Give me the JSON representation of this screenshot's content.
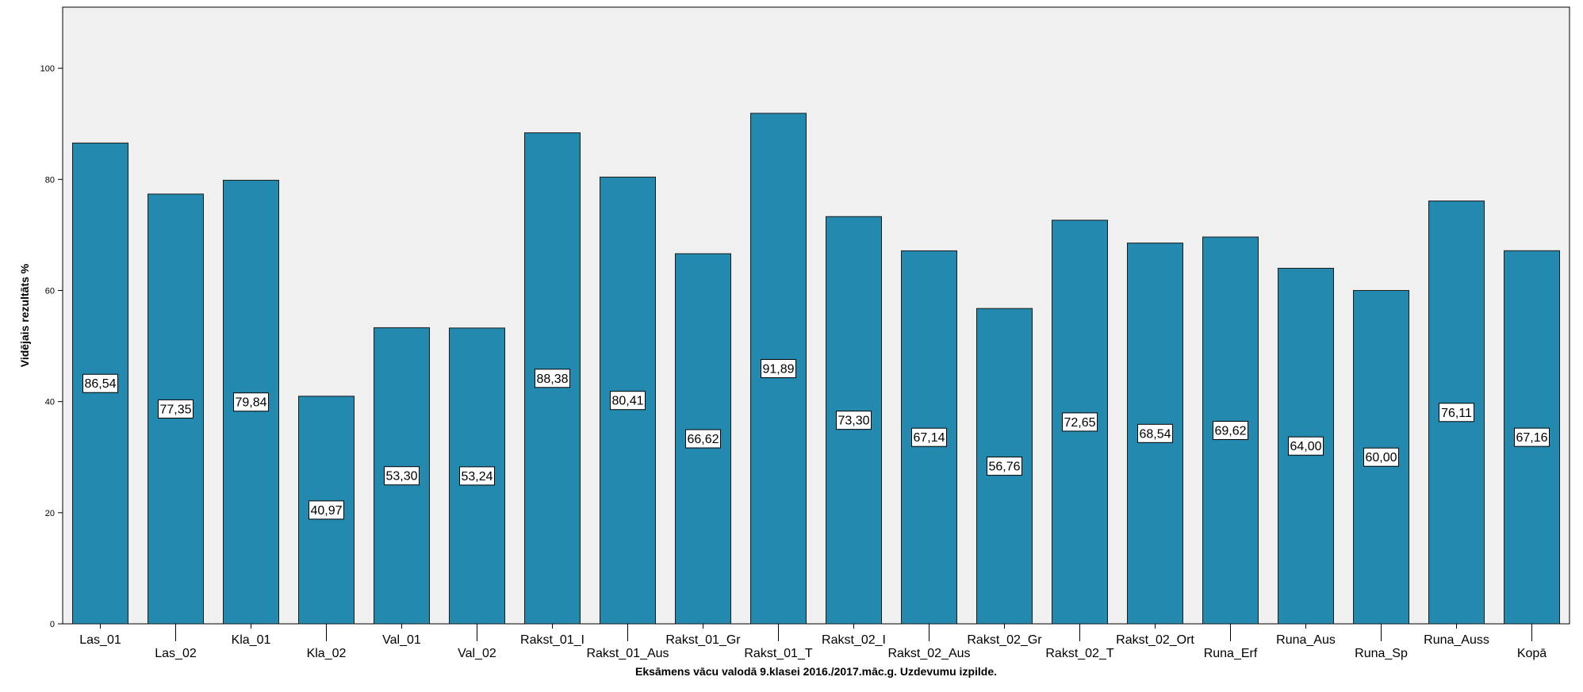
{
  "chart_data": {
    "type": "bar",
    "title": "",
    "xlabel": "Eksāmens vācu valodā 9.klasei 2016./2017.māc.g. Uzdevumu izpilde.",
    "ylabel": "Vidējais rezultāts %",
    "ylim": [
      0,
      111
    ],
    "yticks": [
      0,
      20,
      40,
      60,
      80,
      100
    ],
    "grid": false,
    "categories": [
      "Las_01",
      "Las_02",
      "Kla_01",
      "Kla_02",
      "Val_01",
      "Val_02",
      "Rakst_01_I",
      "Rakst_01_Aus",
      "Rakst_01_Gr",
      "Rakst_01_T",
      "Rakst_02_I",
      "Rakst_02_Aus",
      "Rakst_02_Gr",
      "Rakst_02_T",
      "Rakst_02_Ort",
      "Runa_Erf",
      "Runa_Aus",
      "Runa_Sp",
      "Runa_Auss",
      "Kopā"
    ],
    "values": [
      86.54,
      77.35,
      79.84,
      40.97,
      53.3,
      53.24,
      88.38,
      80.41,
      66.62,
      91.89,
      73.3,
      67.14,
      56.76,
      72.65,
      68.54,
      69.62,
      64.0,
      60.0,
      76.11,
      67.16
    ],
    "data_labels": [
      "86,54",
      "77,35",
      "79,84",
      "40,97",
      "53,30",
      "53,24",
      "88,38",
      "80,41",
      "66,62",
      "91,89",
      "73,30",
      "67,14",
      "56,76",
      "72,65",
      "68,54",
      "69,62",
      "64,00",
      "60,00",
      "76,11",
      "67,16"
    ],
    "colors": {
      "bar": "#2389ae",
      "plot_background": "#f0f0f0",
      "label_box": "#ffffff"
    }
  }
}
